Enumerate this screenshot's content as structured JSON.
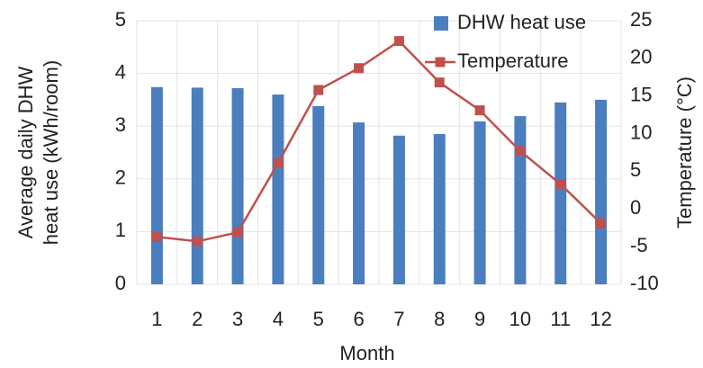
{
  "chart_data": {
    "type": "bar_line",
    "ylabel": [
      "Average daily DHW",
      "heat use (kWh/room)"
    ],
    "y2label": "Temperature (°C)",
    "xlabel": "Month",
    "categories": [
      "1",
      "2",
      "3",
      "4",
      "5",
      "6",
      "7",
      "8",
      "9",
      "10",
      "11",
      "12"
    ],
    "series": [
      {
        "name": "DHW heat use",
        "type": "bar",
        "color": "#4a7ebf",
        "axis": "y",
        "values": [
          3.74,
          3.73,
          3.72,
          3.6,
          3.38,
          3.07,
          2.82,
          2.85,
          3.09,
          3.19,
          3.45,
          3.5
        ]
      },
      {
        "name": "Temperature",
        "type": "line",
        "color": "#c0504d",
        "axis": "y2",
        "values": [
          -3.7,
          -4.3,
          -3.1,
          6.1,
          15.8,
          18.7,
          22.3,
          16.8,
          13.1,
          7.7,
          3.3,
          -1.9
        ]
      }
    ],
    "ylim": [
      0,
      5
    ],
    "yticks": [
      0,
      1,
      2,
      3,
      4,
      5
    ],
    "y2lim": [
      -10,
      25
    ],
    "y2ticks": [
      -10,
      -5,
      0,
      5,
      10,
      15,
      20,
      25
    ],
    "grid": true,
    "legend": "top-right"
  }
}
